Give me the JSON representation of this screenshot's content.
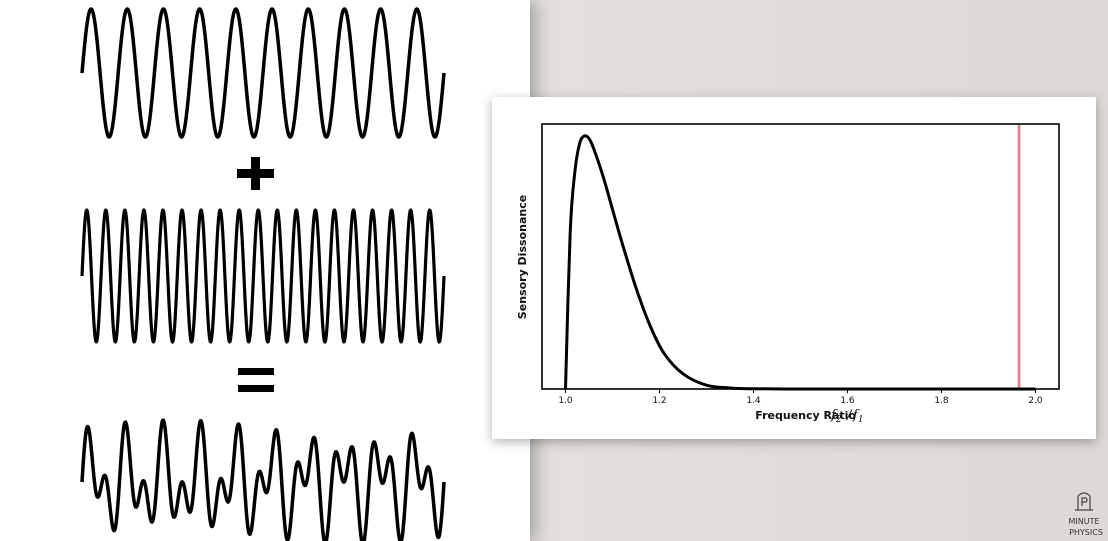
{
  "equation": {
    "plus_symbol": "+",
    "equals_symbol": "=",
    "waves": [
      {
        "name": "low-frequency-wave",
        "cycles": 10
      },
      {
        "name": "high-frequency-wave",
        "cycles": 19
      },
      {
        "name": "sum-wave",
        "components": [
          10,
          19
        ]
      }
    ]
  },
  "chart_data": {
    "type": "line",
    "xlabel": "Frequency Ratio",
    "xlabel_math_base": "f",
    "xlabel_math_sub1": "2",
    "xlabel_math_sub2": "1",
    "ylabel": "Sensory Dissonance",
    "xlim": [
      0.95,
      2.05
    ],
    "ylim": [
      0,
      1.0
    ],
    "xticks": [
      "1.0",
      "1.2",
      "1.4",
      "1.6",
      "1.8",
      "2.0"
    ],
    "yticks_shown": false,
    "grid": false,
    "series": [
      {
        "x": [
          1.0,
          1.01,
          1.02,
          1.03,
          1.04,
          1.05,
          1.06,
          1.08,
          1.1,
          1.12,
          1.15,
          1.18,
          1.21,
          1.25,
          1.3,
          1.35,
          1.4,
          1.5,
          1.6,
          1.7,
          1.8,
          1.9,
          2.0
        ],
        "y": [
          0.0,
          0.62,
          0.86,
          0.97,
          1.0,
          0.99,
          0.95,
          0.84,
          0.71,
          0.58,
          0.4,
          0.25,
          0.14,
          0.06,
          0.015,
          0.004,
          0.001,
          0.0,
          0.0,
          0.0,
          0.0,
          0.0,
          0.0
        ],
        "color": "#000000"
      }
    ],
    "marker_line": {
      "x": 1.965,
      "color": "#e0808a"
    }
  },
  "logo": {
    "line1": "MINUTE",
    "line2": "PHYSICS"
  }
}
